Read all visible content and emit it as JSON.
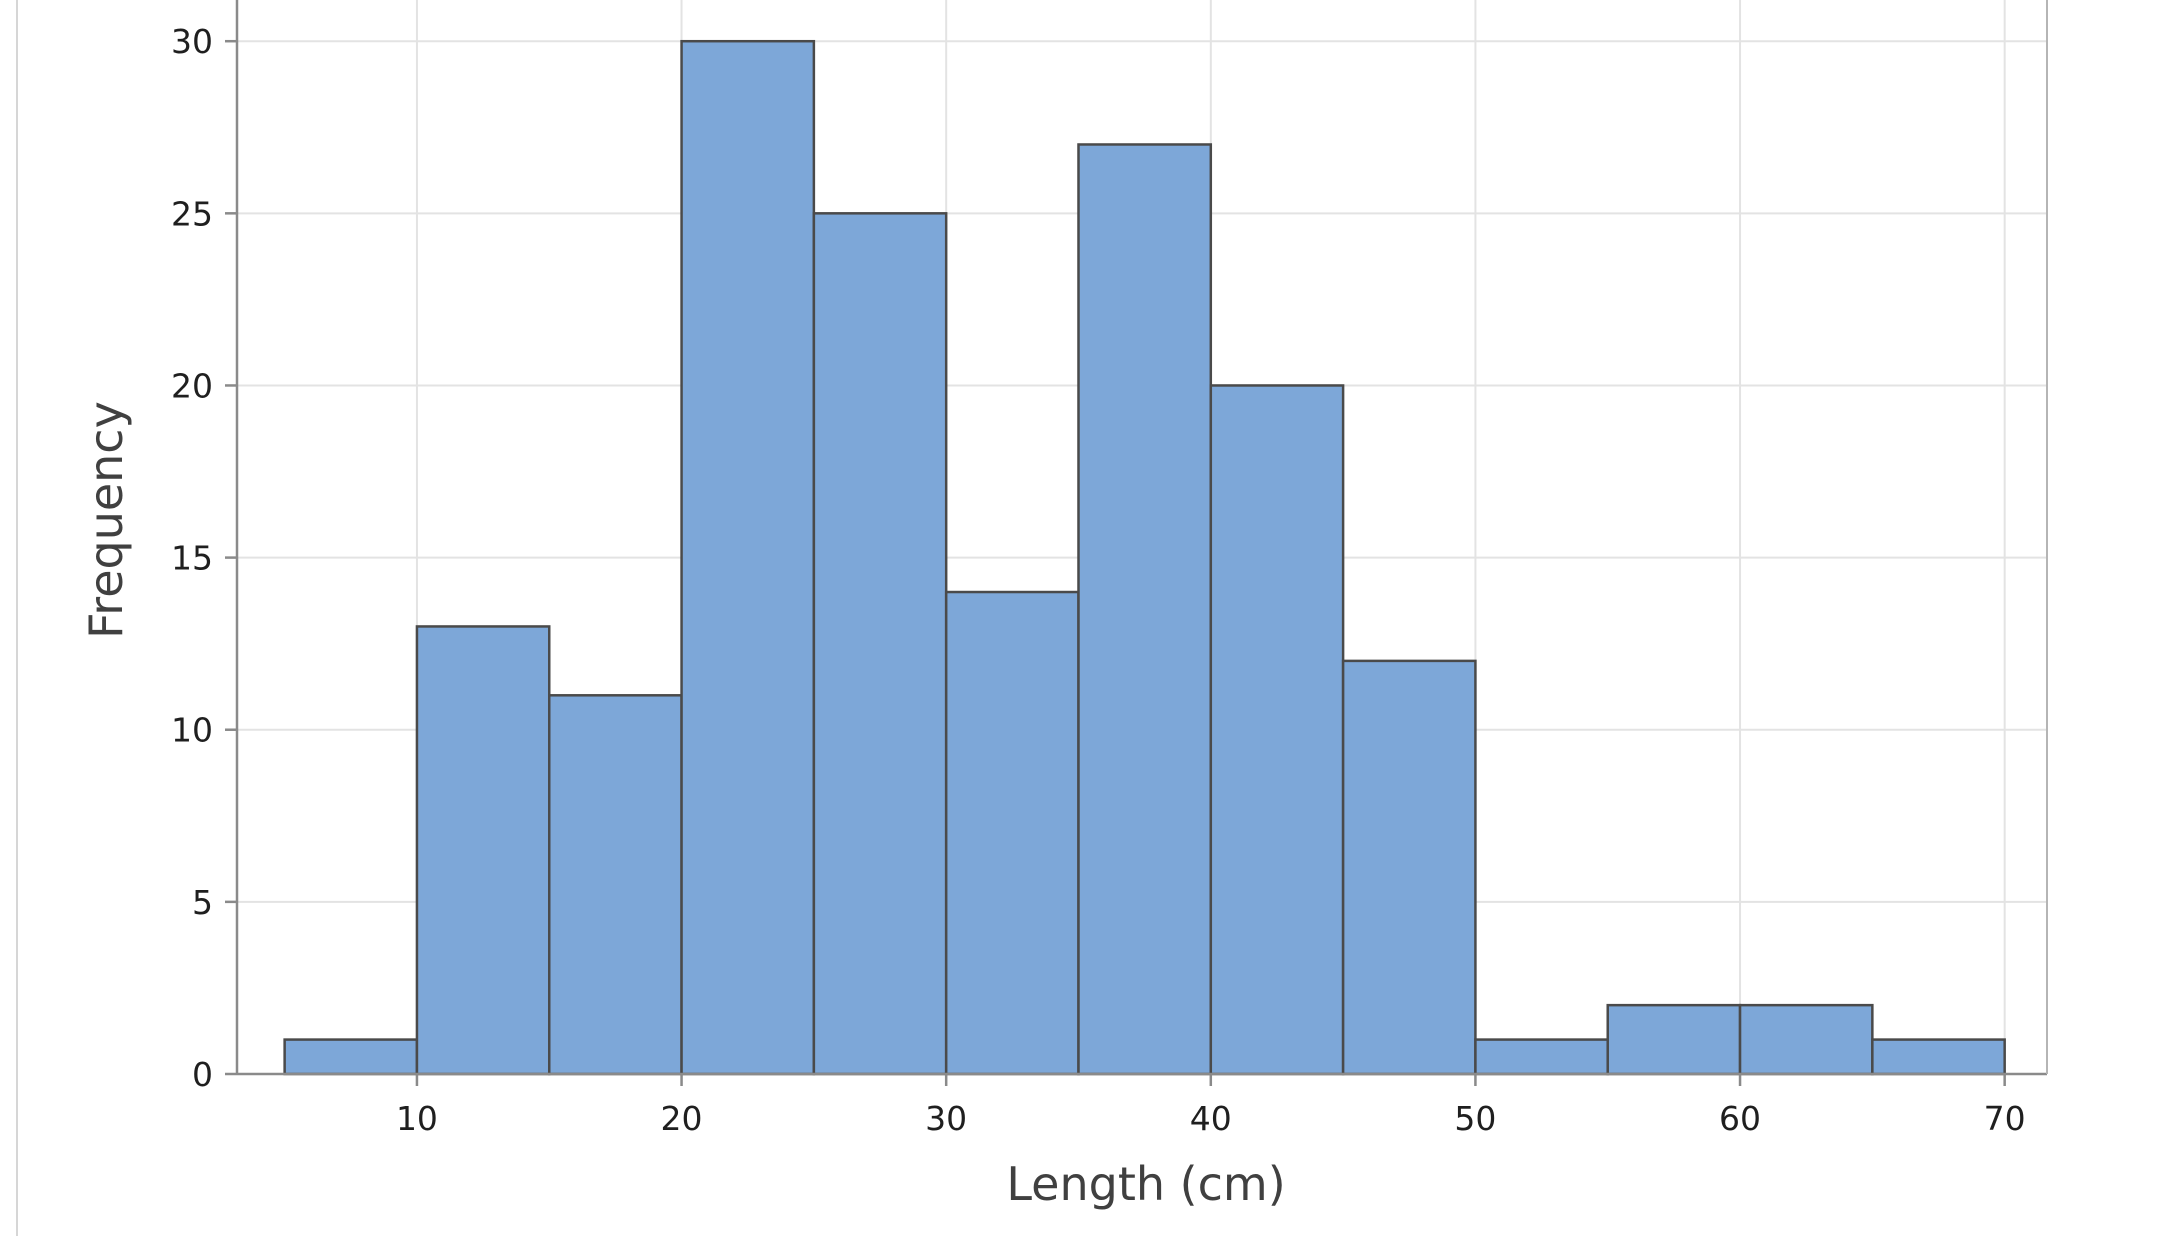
{
  "chart_data": {
    "type": "bar",
    "title": "",
    "xlabel": "Length (cm)",
    "ylabel": "Frequency",
    "xlim": [
      3.2,
      71.6
    ],
    "ylim": [
      0,
      31.4
    ],
    "x_ticks": [
      10,
      20,
      30,
      40,
      50,
      60,
      70
    ],
    "y_ticks": [
      0,
      5,
      10,
      15,
      20,
      25,
      30
    ],
    "grid": true,
    "bins": [
      {
        "start": 5,
        "end": 10,
        "count": 1
      },
      {
        "start": 10,
        "end": 15,
        "count": 13
      },
      {
        "start": 15,
        "end": 20,
        "count": 11
      },
      {
        "start": 20,
        "end": 25,
        "count": 30
      },
      {
        "start": 25,
        "end": 30,
        "count": 25
      },
      {
        "start": 30,
        "end": 35,
        "count": 14
      },
      {
        "start": 35,
        "end": 40,
        "count": 27
      },
      {
        "start": 40,
        "end": 45,
        "count": 20
      },
      {
        "start": 45,
        "end": 50,
        "count": 12
      },
      {
        "start": 50,
        "end": 55,
        "count": 1
      },
      {
        "start": 55,
        "end": 60,
        "count": 2
      },
      {
        "start": 60,
        "end": 65,
        "count": 2
      },
      {
        "start": 65,
        "end": 70,
        "count": 1
      }
    ],
    "colors": {
      "bar_fill": "#7da7d8",
      "bar_edge": "#4a4a4a",
      "grid": "#e3e3e3",
      "axis": "#8a8a8a"
    }
  }
}
